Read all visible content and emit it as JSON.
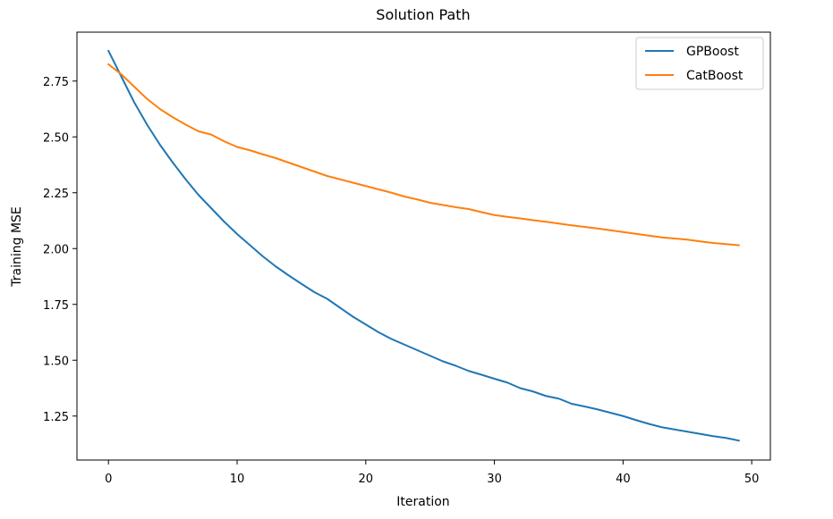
{
  "chart_data": {
    "type": "line",
    "title": "Solution Path",
    "xlabel": "Iteration",
    "ylabel": "Training MSE",
    "xlim": [
      -2.45,
      51.45
    ],
    "ylim": [
      1.053,
      2.969
    ],
    "xticks": [
      0,
      10,
      20,
      30,
      40,
      50
    ],
    "yticks": [
      1.25,
      1.5,
      1.75,
      2.0,
      2.25,
      2.5,
      2.75
    ],
    "xtick_labels": [
      "0",
      "10",
      "20",
      "30",
      "40",
      "50"
    ],
    "ytick_labels": [
      "1.25",
      "1.50",
      "1.75",
      "2.00",
      "2.25",
      "2.50",
      "2.75"
    ],
    "grid": false,
    "legend_position": "top-right",
    "x": [
      0,
      1,
      2,
      3,
      4,
      5,
      6,
      7,
      8,
      9,
      10,
      11,
      12,
      13,
      14,
      15,
      16,
      17,
      18,
      19,
      20,
      21,
      22,
      23,
      24,
      25,
      26,
      27,
      28,
      29,
      30,
      31,
      32,
      33,
      34,
      35,
      36,
      37,
      38,
      39,
      40,
      41,
      42,
      43,
      44,
      45,
      46,
      47,
      48,
      49
    ],
    "series": [
      {
        "name": "GPBoost",
        "color": "#1f77b4",
        "values": [
          2.885,
          2.77,
          2.655,
          2.555,
          2.465,
          2.385,
          2.31,
          2.24,
          2.18,
          2.12,
          2.065,
          2.015,
          1.965,
          1.92,
          1.88,
          1.842,
          1.805,
          1.775,
          1.735,
          1.695,
          1.66,
          1.625,
          1.595,
          1.57,
          1.545,
          1.52,
          1.495,
          1.475,
          1.452,
          1.435,
          1.417,
          1.4,
          1.375,
          1.36,
          1.34,
          1.328,
          1.305,
          1.293,
          1.28,
          1.265,
          1.25,
          1.232,
          1.215,
          1.2,
          1.19,
          1.18,
          1.17,
          1.16,
          1.152,
          1.14
        ]
      },
      {
        "name": "CatBoost",
        "color": "#ff7f0e",
        "values": [
          2.825,
          2.78,
          2.725,
          2.67,
          2.625,
          2.588,
          2.555,
          2.525,
          2.51,
          2.48,
          2.455,
          2.44,
          2.422,
          2.405,
          2.385,
          2.365,
          2.345,
          2.325,
          2.31,
          2.295,
          2.28,
          2.265,
          2.25,
          2.233,
          2.22,
          2.205,
          2.195,
          2.185,
          2.177,
          2.163,
          2.15,
          2.142,
          2.135,
          2.127,
          2.12,
          2.112,
          2.104,
          2.097,
          2.09,
          2.082,
          2.074,
          2.066,
          2.058,
          2.05,
          2.045,
          2.04,
          2.032,
          2.025,
          2.02,
          2.015
        ]
      }
    ]
  }
}
